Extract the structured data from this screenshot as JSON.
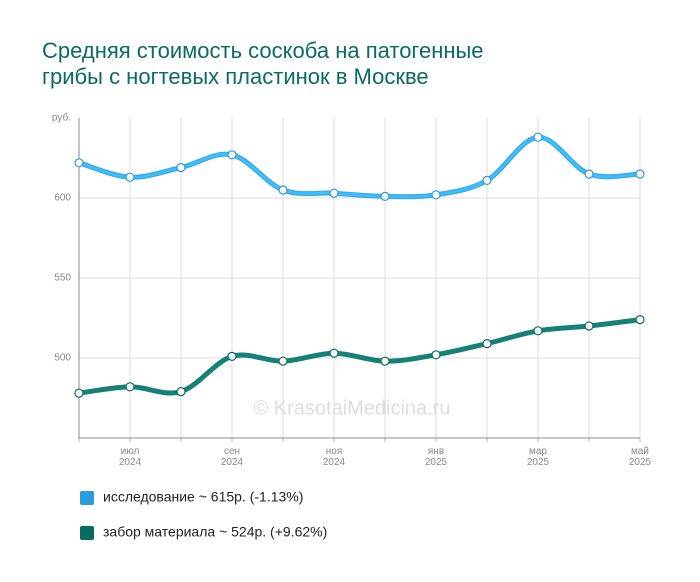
{
  "chart_data": {
    "type": "line",
    "title": "Средняя стоимость соскоба на патогенные грибы с ногтевых пластинок в Москве",
    "y_axis_label": "руб.",
    "watermark": "© KrasotaiMedicina.ru",
    "categories": [
      null,
      [
        "июл",
        "2024"
      ],
      null,
      [
        "сен",
        "2024"
      ],
      null,
      [
        "ноя",
        "2024"
      ],
      null,
      [
        "янв",
        "2025"
      ],
      null,
      [
        "мар",
        "2025"
      ],
      null,
      [
        "май",
        "2025"
      ]
    ],
    "series": [
      {
        "name": "исследование ~ 615р. (-1.13%)",
        "color": "#2b9be0",
        "values": [
          622,
          613,
          619,
          627,
          605,
          603,
          601,
          602,
          611,
          638,
          615,
          615
        ]
      },
      {
        "name": "забор материала ~ 524р. (+9.62%)",
        "color": "#0a6b63",
        "values": [
          478,
          482,
          479,
          501,
          498,
          503,
          498,
          502,
          509,
          517,
          520,
          524
        ]
      }
    ],
    "ylim": [
      450,
      650
    ],
    "yticks": [
      500,
      550,
      600
    ],
    "grid": true
  }
}
